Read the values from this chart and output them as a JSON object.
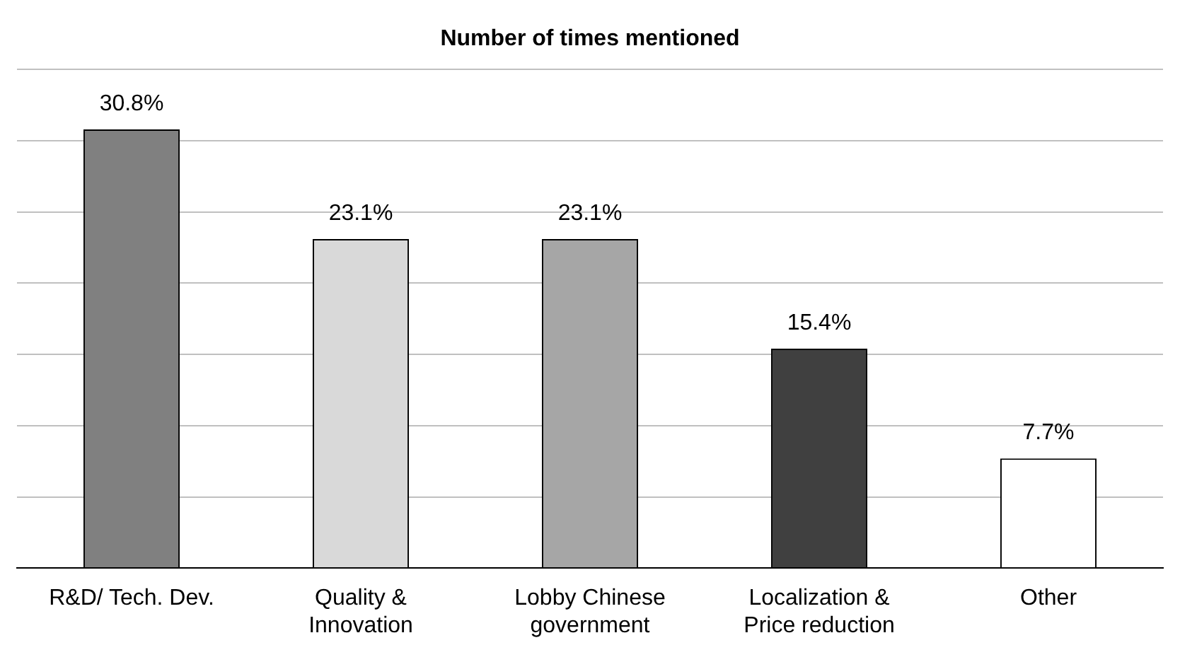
{
  "chart_data": {
    "type": "bar",
    "title": "Number of times mentioned",
    "categories": [
      "R&D/ Tech. Dev.",
      "Quality & Innovation",
      "Lobby Chinese government",
      "Localization & Price reduction",
      "Other"
    ],
    "values": [
      30.8,
      23.1,
      23.1,
      15.4,
      7.7
    ],
    "colors": [
      "#808080",
      "#d9d9d9",
      "#a6a6a6",
      "#404040",
      "#ffffff"
    ],
    "value_labels": [
      "30.8%",
      "23.1%",
      "23.1%",
      "15.4%",
      "7.7%"
    ],
    "tick_labels": "x",
    "grid": "y",
    "legend": false
  }
}
